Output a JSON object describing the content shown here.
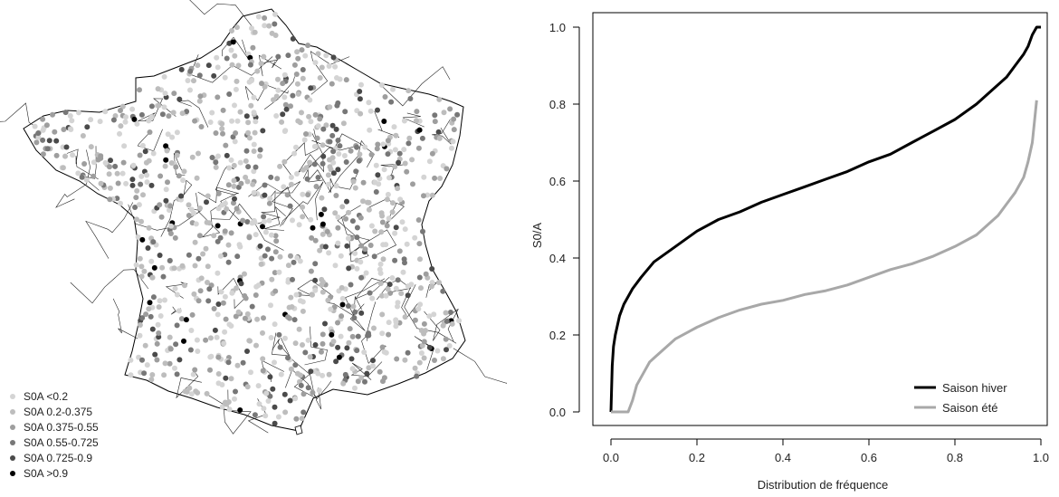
{
  "chart_data": [
    {
      "type": "scatter",
      "title": "",
      "legend": {
        "placement": "bottom-left",
        "entries": [
          {
            "label": "S0A <0.2",
            "color": "#d4d4d4"
          },
          {
            "label": "S0A 0.2-0.375",
            "color": "#bdbdbd"
          },
          {
            "label": "S0A 0.375-0.55",
            "color": "#9e9e9e"
          },
          {
            "label": "S0A 0.55-0.725",
            "color": "#777777"
          },
          {
            "label": "S0A 0.725-0.9",
            "color": "#4a4a4a"
          },
          {
            "label": "S0A >0.9",
            "color": "#000000"
          }
        ]
      },
      "grid": false
    },
    {
      "type": "line",
      "title": "",
      "xlabel": "Distribution de fréquence",
      "ylabel": "S0/A",
      "xlim": [
        0,
        1
      ],
      "ylim": [
        0,
        1
      ],
      "xticks": [
        "0.0",
        "0.2",
        "0.4",
        "0.6",
        "0.8",
        "1.0"
      ],
      "yticks": [
        "0.0",
        "0.2",
        "0.4",
        "0.6",
        "0.8",
        "1.0"
      ],
      "grid": false,
      "legend_placement": "bottom-right",
      "series": [
        {
          "name": "Saison hiver",
          "color": "#000000",
          "x": [
            0.0,
            0.003,
            0.006,
            0.01,
            0.02,
            0.03,
            0.05,
            0.07,
            0.1,
            0.15,
            0.2,
            0.25,
            0.3,
            0.35,
            0.4,
            0.45,
            0.5,
            0.55,
            0.6,
            0.65,
            0.7,
            0.75,
            0.8,
            0.85,
            0.88,
            0.9,
            0.92,
            0.94,
            0.96,
            0.97,
            0.98,
            0.99,
            1.0
          ],
          "values": [
            0.0,
            0.12,
            0.17,
            0.2,
            0.25,
            0.28,
            0.32,
            0.35,
            0.39,
            0.43,
            0.47,
            0.5,
            0.52,
            0.545,
            0.565,
            0.585,
            0.605,
            0.625,
            0.65,
            0.67,
            0.7,
            0.73,
            0.76,
            0.8,
            0.83,
            0.85,
            0.87,
            0.9,
            0.93,
            0.95,
            0.98,
            1.0,
            1.0
          ]
        },
        {
          "name": "Saison été",
          "color": "#a8a8a8",
          "x": [
            0.0,
            0.04,
            0.05,
            0.06,
            0.08,
            0.09,
            0.1,
            0.12,
            0.15,
            0.2,
            0.25,
            0.3,
            0.35,
            0.4,
            0.45,
            0.5,
            0.55,
            0.6,
            0.65,
            0.7,
            0.75,
            0.8,
            0.85,
            0.88,
            0.9,
            0.92,
            0.94,
            0.96,
            0.97,
            0.98,
            0.99
          ],
          "values": [
            0.0,
            0.0,
            0.03,
            0.07,
            0.11,
            0.13,
            0.14,
            0.16,
            0.19,
            0.22,
            0.245,
            0.265,
            0.28,
            0.29,
            0.305,
            0.315,
            0.33,
            0.35,
            0.37,
            0.385,
            0.405,
            0.43,
            0.46,
            0.49,
            0.51,
            0.54,
            0.57,
            0.61,
            0.65,
            0.7,
            0.81
          ]
        }
      ]
    }
  ]
}
